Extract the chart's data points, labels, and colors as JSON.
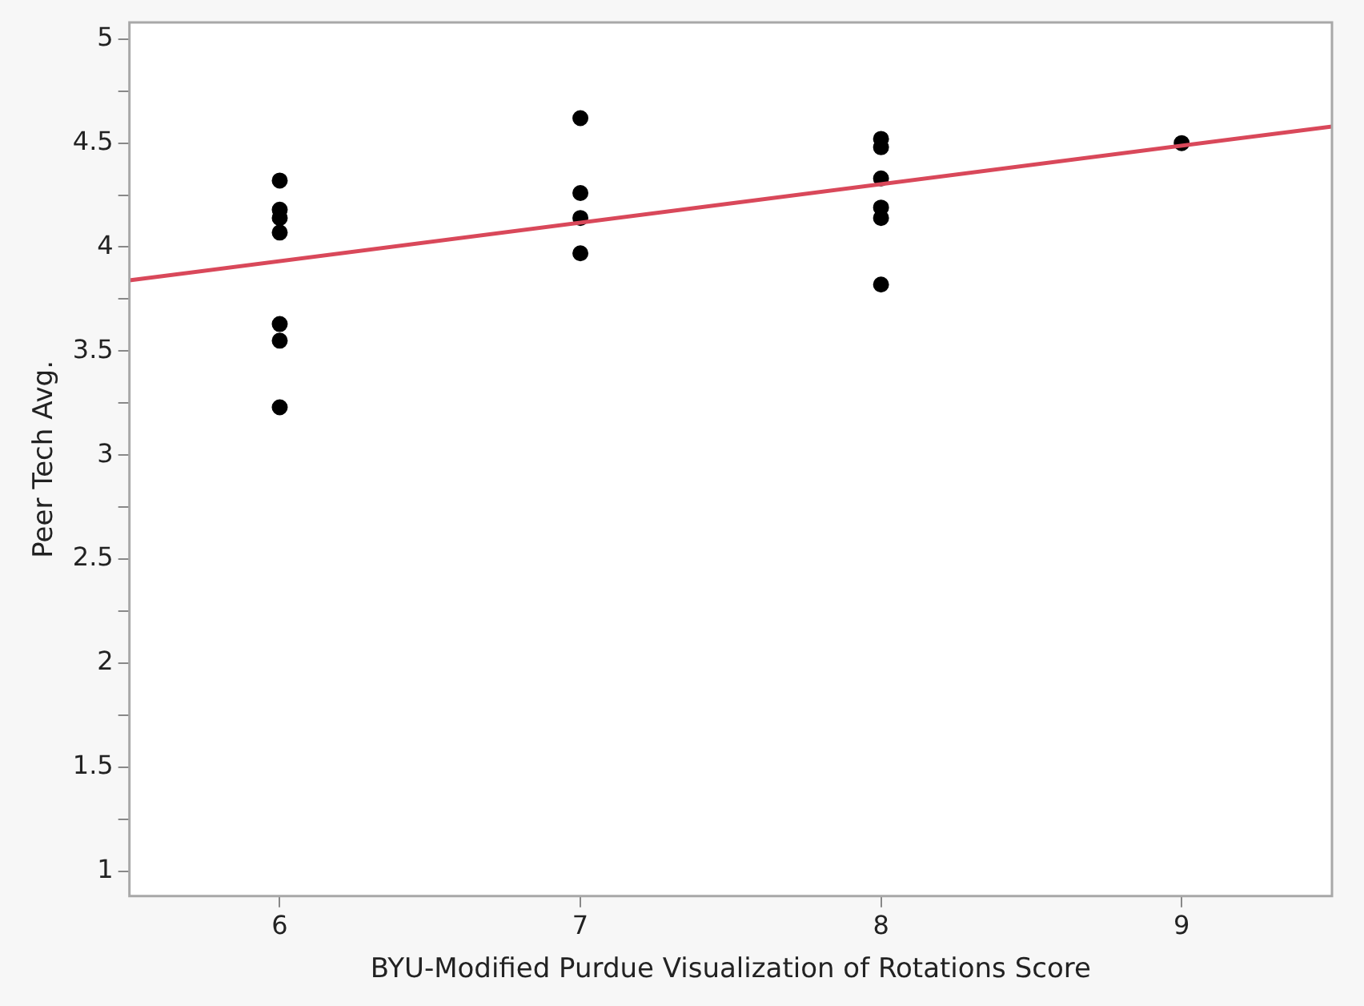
{
  "chart_data": {
    "type": "scatter",
    "xlabel": "BYU-Modified Purdue Visualization of Rotations Score",
    "ylabel": "Peer Tech Avg.",
    "xlim": [
      5.5,
      9.5
    ],
    "xticks": [
      6,
      7,
      8,
      9
    ],
    "ylim": [
      0.88,
      5.08
    ],
    "yticks": [
      1,
      {
        "value": 1.25,
        "label": null
      },
      1.5,
      {
        "value": 1.75,
        "label": null
      },
      2,
      {
        "value": 2.25,
        "label": null
      },
      2.5,
      {
        "value": 2.75,
        "label": null
      },
      3,
      {
        "value": 3.25,
        "label": null
      },
      3.5,
      {
        "value": 3.75,
        "label": null
      },
      4,
      {
        "value": 4.25,
        "label": null
      },
      4.5,
      {
        "value": 4.75,
        "label": null
      },
      5
    ],
    "grid": false,
    "legend": false,
    "marker": "circle",
    "series": [
      {
        "type": "scatter",
        "color": "#000000",
        "x": [
          6,
          6,
          6,
          6,
          6,
          6,
          6,
          7,
          7,
          7,
          7,
          8,
          8,
          8,
          8,
          8,
          8,
          9
        ],
        "values": [
          4.32,
          4.18,
          4.14,
          4.07,
          3.63,
          3.55,
          3.23,
          4.62,
          4.26,
          4.14,
          3.97,
          4.52,
          4.48,
          4.33,
          4.19,
          4.14,
          3.82,
          4.5
        ]
      },
      {
        "type": "line",
        "color": "#d9485a",
        "x": [
          5.5,
          9.5
        ],
        "values": [
          3.84,
          4.58
        ],
        "marker": "none",
        "line_style": "solid"
      }
    ]
  }
}
